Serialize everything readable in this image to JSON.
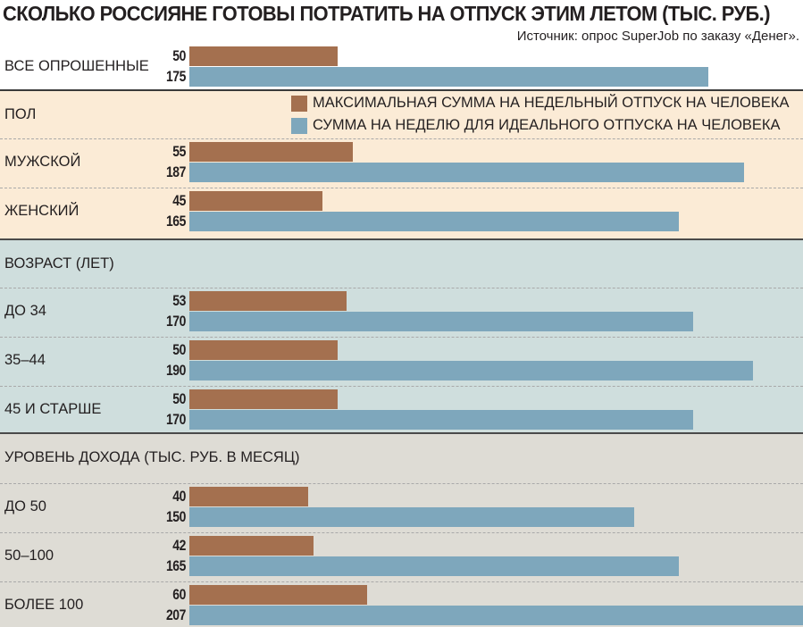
{
  "chart_data": {
    "type": "bar",
    "orientation": "horizontal",
    "title": "СКОЛЬКО РОССИЯНЕ ГОТОВЫ ПОТРАТИТЬ НА ОТПУСК ЭТИМ ЛЕТОМ (ТЫС. РУБ.)",
    "source": "Источник: опрос SuperJob по заказу «Денег».",
    "xlim": [
      0,
      207
    ],
    "grid": false,
    "legend_position": "top-right",
    "series": [
      {
        "name": "МАКСИМАЛЬНАЯ СУММА НА НЕДЕЛЬНЫЙ ОТПУСК НА ЧЕЛОВЕКА",
        "color": "#a4704f"
      },
      {
        "name": "СУММА НА НЕДЕЛЮ ДЛЯ ИДЕАЛЬНОГО ОТПУСКА НА ЧЕЛОВЕКА",
        "color": "#7ea7bc"
      }
    ],
    "overall": {
      "category": "ВСЕ ОПРОШЕННЫЕ",
      "max": 50,
      "ideal": 175
    },
    "groups": [
      {
        "label": "ПОЛ",
        "background": "#fbebd6",
        "rows": [
          {
            "category": "МУЖСКОЙ",
            "max": 55,
            "ideal": 187
          },
          {
            "category": "ЖЕНСКИЙ",
            "max": 45,
            "ideal": 165
          }
        ]
      },
      {
        "label": "ВОЗРАСТ (ЛЕТ)",
        "background": "#cfdedd",
        "rows": [
          {
            "category": "ДО 34",
            "max": 53,
            "ideal": 170
          },
          {
            "category": "35–44",
            "max": 50,
            "ideal": 190
          },
          {
            "category": "45 И СТАРШЕ",
            "max": 50,
            "ideal": 170
          }
        ]
      },
      {
        "label": "УРОВЕНЬ ДОХОДА (ТЫС. РУБ. В МЕСЯЦ)",
        "background": "#dedcd5",
        "rows": [
          {
            "category": "ДО 50",
            "max": 40,
            "ideal": 150
          },
          {
            "category": "50–100",
            "max": 42,
            "ideal": 165
          },
          {
            "category": "БОЛЕЕ 100",
            "max": 60,
            "ideal": 207
          }
        ]
      }
    ]
  }
}
